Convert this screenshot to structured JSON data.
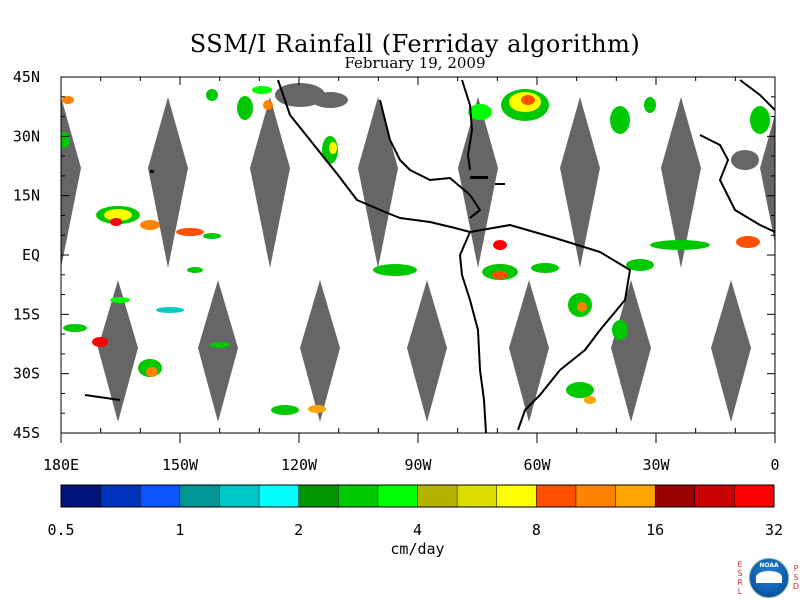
{
  "title": "SSM/I Rainfall (Ferriday algorithm)",
  "subtitle": "February 19, 2009",
  "map": {
    "lon_range": [
      -180,
      0
    ],
    "lat_range": [
      -45,
      45
    ],
    "lat_labels": [
      "45N",
      "30N",
      "15N",
      "EQ",
      "15S",
      "30S",
      "45S"
    ],
    "lon_labels": [
      "180E",
      "150W",
      "120W",
      "90W",
      "60W",
      "30W",
      "0"
    ],
    "missing_data_color": "#666666",
    "coastline_color": "#000000"
  },
  "colorbar": {
    "colors": [
      "#00147a",
      "#0032be",
      "#0a55ff",
      "#009696",
      "#00c8c8",
      "#00ffff",
      "#009600",
      "#00c800",
      "#00ff00",
      "#b4b400",
      "#dcdc00",
      "#ffff00",
      "#ff5000",
      "#ff8200",
      "#ffa500",
      "#960000",
      "#c80000",
      "#ff0000"
    ],
    "tick_labels": [
      "0.5",
      "1",
      "2",
      "4",
      "8",
      "16",
      "32"
    ],
    "units": "cm/day"
  },
  "logo": {
    "left_letters": [
      "E",
      "S",
      "R",
      "L"
    ],
    "right_letters": [
      "P",
      "S",
      "D"
    ],
    "center_text": "NOAA"
  }
}
